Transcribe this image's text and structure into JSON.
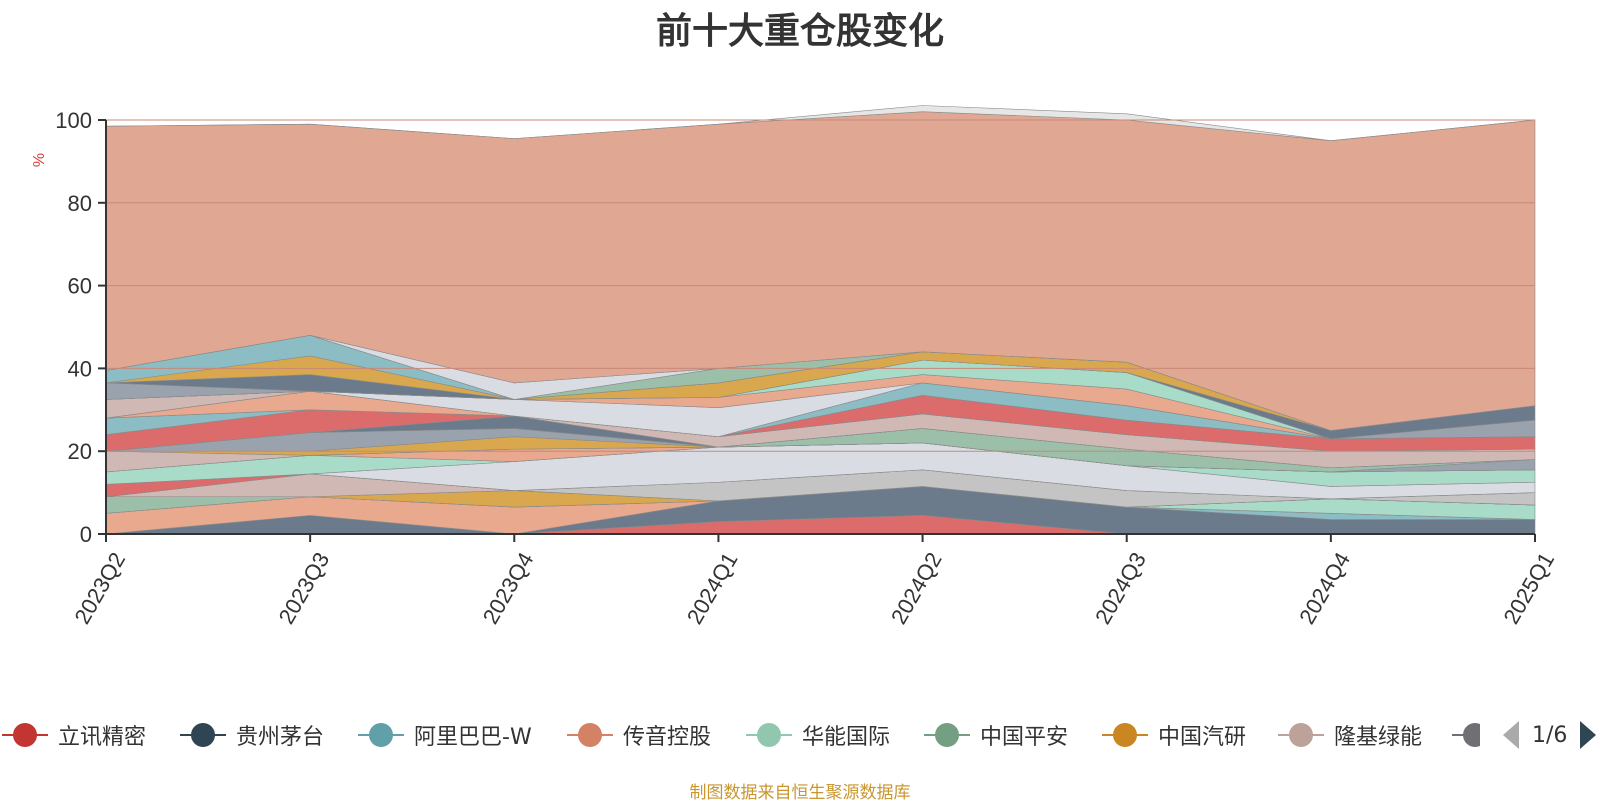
{
  "chart_data": {
    "type": "area",
    "title": "前十大重仓股变化",
    "ylabel": "%",
    "ylim": [
      0,
      100
    ],
    "yticks": [
      0,
      20,
      40,
      60,
      80,
      100
    ],
    "grid": true,
    "stacked": true,
    "categories": [
      "2023Q2",
      "2023Q3",
      "2023Q4",
      "2024Q1",
      "2024Q2",
      "2024Q3",
      "2024Q4",
      "2025Q1"
    ],
    "series": [
      {
        "name": "立讯精密",
        "color": "#dc6b6b",
        "values": [
          0,
          0,
          0,
          3,
          4.5,
          0,
          0,
          0
        ]
      },
      {
        "name": "贵州茅台",
        "color": "#6b7b8b",
        "values": [
          0,
          4.5,
          0,
          5,
          7,
          6.5,
          3.5,
          3.5
        ]
      },
      {
        "name": "阿里巴巴-W",
        "color": "#8cbcc4",
        "values": [
          0,
          0,
          0,
          0,
          0,
          0,
          1.5,
          0
        ]
      },
      {
        "name": "传音控股",
        "color": "#e8a98e",
        "values": [
          5,
          4.5,
          6.5,
          0,
          0,
          0,
          0,
          0
        ]
      },
      {
        "name": "华能国际",
        "color": "#a8dcc8",
        "values": [
          0,
          0,
          0,
          0,
          0,
          0,
          3.5,
          3.5
        ]
      },
      {
        "name": "中国平安",
        "color": "#9bbfa8",
        "values": [
          4,
          0,
          0,
          0,
          0,
          0,
          0,
          0
        ]
      },
      {
        "name": "中国汽研",
        "color": "#d9a84e",
        "values": [
          0,
          0,
          4,
          0,
          0,
          0,
          0,
          0
        ]
      },
      {
        "name": "隆基绿能",
        "color": "#d0b8b4",
        "values": [
          0,
          5.5,
          0,
          0,
          0,
          0,
          0,
          0
        ]
      },
      {
        "name": "",
        "color": "#c4c4c4",
        "values": [
          0,
          0,
          0,
          4.5,
          4,
          4,
          0,
          3
        ]
      },
      {
        "name": "",
        "color": "#dc6b6b",
        "values": [
          3,
          0,
          0,
          0,
          0,
          0,
          0,
          0
        ]
      },
      {
        "name": "",
        "color": "#d9dde3",
        "values": [
          0,
          0,
          7,
          8.5,
          6.5,
          6,
          3,
          2.5
        ]
      },
      {
        "name": "",
        "color": "#a8dcc8",
        "values": [
          3,
          4.5,
          0,
          0,
          0,
          0,
          3.5,
          3
        ]
      },
      {
        "name": "",
        "color": "#e8a98e",
        "values": [
          0,
          0,
          3,
          0,
          0,
          0,
          0,
          0
        ]
      },
      {
        "name": "",
        "color": "#d0b8b4",
        "values": [
          5,
          0,
          0,
          0,
          0,
          0,
          0,
          0
        ]
      },
      {
        "name": "",
        "color": "#d9a84e",
        "values": [
          0,
          1,
          3,
          0,
          0,
          0,
          0,
          0
        ]
      },
      {
        "name": "",
        "color": "#9aa3ad",
        "values": [
          0,
          4.5,
          2,
          0,
          0,
          0,
          0,
          2.5
        ]
      },
      {
        "name": "",
        "color": "#9bbfa8",
        "values": [
          0,
          0,
          0,
          0,
          3.5,
          4,
          1,
          0
        ]
      },
      {
        "name": "",
        "color": "#6b7b8b",
        "values": [
          0,
          0,
          3,
          0,
          0,
          0,
          0,
          0
        ]
      },
      {
        "name": "",
        "color": "#e8a98e",
        "values": [
          0,
          0,
          0,
          0,
          0,
          0,
          0,
          0
        ]
      },
      {
        "name": "",
        "color": "#dc6b6b",
        "values": [
          4,
          5.5,
          0,
          0,
          0,
          0,
          0,
          0
        ]
      },
      {
        "name": "",
        "color": "#d0b8b4",
        "values": [
          0,
          0,
          0,
          2.5,
          3.5,
          3.5,
          4,
          2.5
        ]
      },
      {
        "name": "",
        "color": "#8cbcc4",
        "values": [
          4,
          0,
          0,
          0,
          0,
          0,
          0,
          0
        ]
      },
      {
        "name": "",
        "color": "#dc6b6b",
        "values": [
          0,
          0,
          0,
          0,
          4.5,
          3.5,
          3,
          3
        ]
      },
      {
        "name": "",
        "color": "#e8a98e",
        "values": [
          0,
          4.5,
          0,
          0,
          0,
          0,
          0,
          0
        ]
      },
      {
        "name": "",
        "color": "#8cbcc4",
        "values": [
          0,
          0,
          0,
          0,
          3,
          3.5,
          0,
          0
        ]
      },
      {
        "name": "",
        "color": "#d0b8b4",
        "values": [
          4.5,
          0,
          0,
          0,
          0,
          0,
          0,
          0
        ]
      },
      {
        "name": "",
        "color": "#d9dde3",
        "values": [
          0,
          0,
          4,
          7,
          0,
          0,
          0,
          0
        ]
      },
      {
        "name": "",
        "color": "#e8a98e",
        "values": [
          0,
          0,
          0,
          2.5,
          2,
          4,
          0,
          0
        ]
      },
      {
        "name": "",
        "color": "#a8dcc8",
        "values": [
          0,
          0,
          0,
          0,
          3.5,
          4,
          0,
          0
        ]
      },
      {
        "name": "",
        "color": "#9aa3ad",
        "values": [
          4,
          0,
          0,
          0,
          0,
          0,
          0,
          4
        ]
      },
      {
        "name": "",
        "color": "#6b7b8b",
        "values": [
          0,
          4,
          0,
          0,
          0,
          0,
          2,
          3.5
        ]
      },
      {
        "name": "",
        "color": "#d9a84e",
        "values": [
          0,
          4.5,
          0,
          3.5,
          2,
          2.5,
          0,
          0
        ]
      },
      {
        "name": "",
        "color": "#8cbcc4",
        "values": [
          3,
          5,
          0,
          0,
          0,
          0,
          0,
          0
        ]
      },
      {
        "name": "",
        "color": "#9bbfa8",
        "values": [
          0,
          0,
          0,
          3.5,
          0,
          0,
          0,
          0
        ]
      },
      {
        "name": "",
        "color": "#d9dde3",
        "values": [
          0,
          0,
          4,
          0,
          0,
          0,
          0,
          0
        ]
      },
      {
        "name": "",
        "color": "#e0a793",
        "values": [
          59,
          51,
          59,
          59,
          58,
          58.5,
          70,
          69
        ]
      },
      {
        "name": "",
        "color": "#e6e6e6",
        "values": [
          0,
          0,
          0,
          0,
          1.5,
          1.5,
          0,
          0
        ]
      }
    ]
  },
  "legend": {
    "items": [
      {
        "label": "立讯精密",
        "color": "#c23531"
      },
      {
        "label": "贵州茅台",
        "color": "#2f4554"
      },
      {
        "label": "阿里巴巴-W",
        "color": "#61a0a8"
      },
      {
        "label": "传音控股",
        "color": "#d48265"
      },
      {
        "label": "华能国际",
        "color": "#91c7ae"
      },
      {
        "label": "中国平安",
        "color": "#749f83"
      },
      {
        "label": "中国汽研",
        "color": "#ca8622"
      },
      {
        "label": "隆基绿能",
        "color": "#bda29a"
      },
      {
        "label": "",
        "color": "#6e7074"
      }
    ],
    "page": "1/6",
    "prev_icon": "triangle-left-icon",
    "next_icon": "triangle-right-icon"
  },
  "footer": {
    "source_note": "制图数据来自恒生聚源数据库"
  }
}
